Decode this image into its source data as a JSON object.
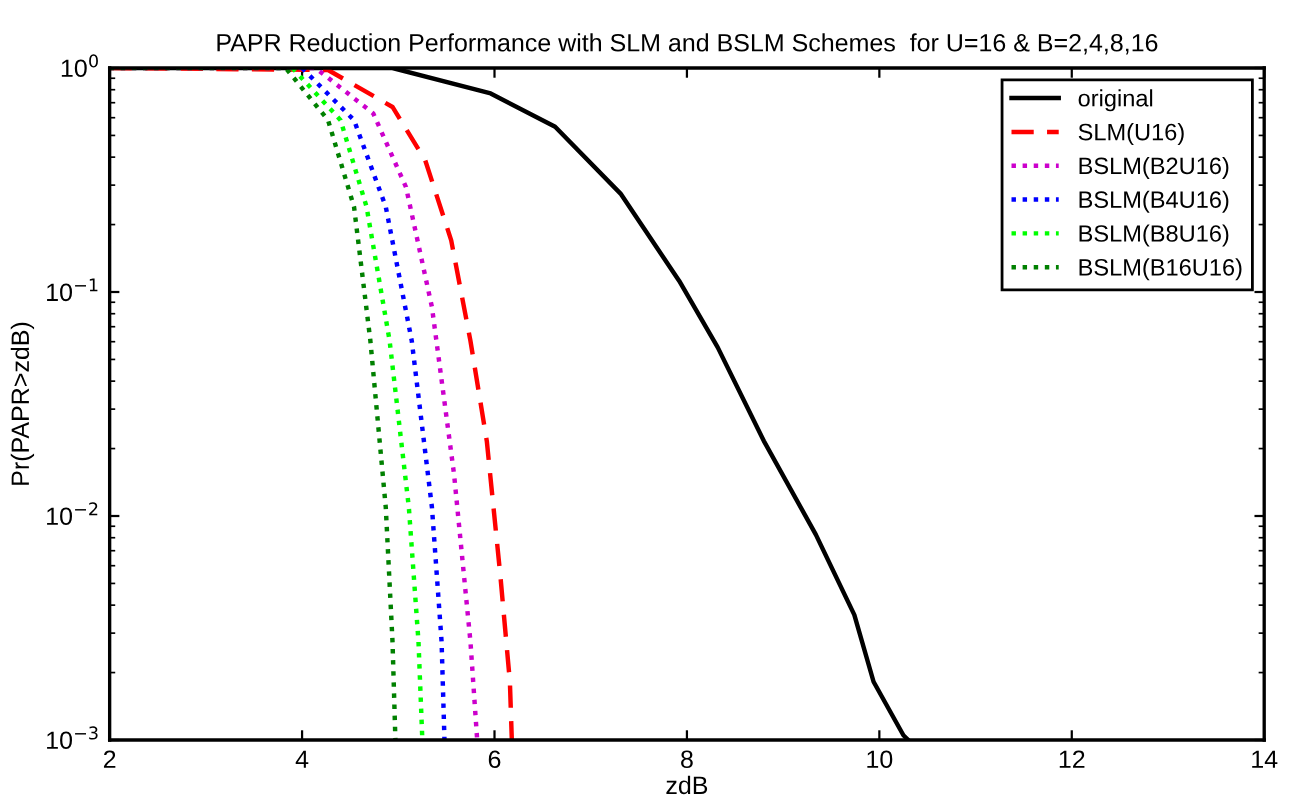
{
  "chart_data": {
    "type": "line",
    "title": "PAPR Reduction Performance with SLM and BSLM Schemes  for U=16 & B=2,4,8,16",
    "xlabel": "zdB",
    "ylabel": "Pr(PAPR>zdB)",
    "log": "y",
    "grid": false,
    "legend": "top right",
    "xlim": [
      2,
      14
    ],
    "xticks": [
      2,
      4,
      6,
      8,
      10,
      12,
      14
    ],
    "ylim": [
      0.001,
      1
    ],
    "yticks": [
      {
        "value": 0.001,
        "label": "10$^{−3}$"
      },
      {
        "value": 0.01,
        "label": "10$^{−2}$"
      },
      {
        "value": 0.1,
        "label": "10$^{−1}$"
      },
      {
        "value": 1,
        "label": "10$^{0}$"
      }
    ],
    "series": [
      {
        "name": "original",
        "color": "#000000",
        "line_style": "solid",
        "x": [
          2,
          4.94,
          5.96,
          6.63,
          7.31,
          7.92,
          8.32,
          8.8,
          9.34,
          9.74,
          9.94,
          10.25,
          10.3
        ],
        "values": [
          1,
          1,
          0.77,
          0.547,
          0.275,
          0.112,
          0.0566,
          0.0216,
          0.00826,
          0.00362,
          0.00182,
          0.00105,
          0.001
        ]
      },
      {
        "name": "SLM(U16)",
        "color": "#ff0000",
        "line_style": "dashed",
        "x": [
          2,
          4.27,
          4.94,
          5.28,
          5.55,
          5.75,
          5.92,
          6.06,
          6.16,
          6.18
        ],
        "values": [
          1,
          0.98,
          0.67,
          0.387,
          0.17,
          0.0605,
          0.0216,
          0.00547,
          0.00182,
          0.001
        ]
      },
      {
        "name": "BSLM(B2U16)",
        "color": "#cc00cc",
        "line_style": "dotted",
        "x": [
          2,
          4.14,
          4.74,
          5.08,
          5.35,
          5.58,
          5.75,
          5.82
        ],
        "values": [
          1,
          1,
          0.627,
          0.294,
          0.0855,
          0.0153,
          0.00275,
          0.001
        ]
      },
      {
        "name": "BSLM(B4U16)",
        "color": "#0000ff",
        "line_style": "dotted",
        "x": [
          4.0,
          4.54,
          4.87,
          5.14,
          5.35,
          5.45,
          5.48
        ],
        "values": [
          1,
          0.585,
          0.24,
          0.0605,
          0.0109,
          0.00275,
          0.001
        ]
      },
      {
        "name": "BSLM(B8U16)",
        "color": "#00ff00",
        "line_style": "dotted",
        "x": [
          3.9,
          4.4,
          4.67,
          4.91,
          5.11,
          5.21,
          5.25
        ],
        "values": [
          1,
          0.585,
          0.24,
          0.0605,
          0.0109,
          0.00275,
          0.001
        ]
      },
      {
        "name": "BSLM(B16U16)",
        "color": "#008000",
        "line_style": "dotted",
        "x": [
          2,
          3.83,
          4.27,
          4.54,
          4.71,
          4.87,
          4.94,
          4.97
        ],
        "values": [
          1,
          1,
          0.585,
          0.24,
          0.0605,
          0.0109,
          0.00275,
          0.001
        ]
      }
    ]
  }
}
